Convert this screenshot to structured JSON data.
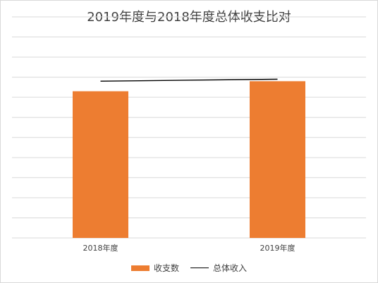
{
  "chart_data": {
    "type": "bar",
    "title": "2019年度与2018年度总体收支比对",
    "categories": [
      "2018年度",
      "2019年度"
    ],
    "series": [
      {
        "name": "收支数",
        "type": "bar",
        "values": [
          7.3,
          7.8
        ],
        "color": "#ED7D31"
      },
      {
        "name": "总体收入",
        "type": "line",
        "values": [
          7.8,
          7.9
        ],
        "color": "#000000"
      }
    ],
    "ylim": [
      0,
      11
    ],
    "grid": true,
    "legend": "bottom",
    "xlabel": "",
    "ylabel": ""
  }
}
